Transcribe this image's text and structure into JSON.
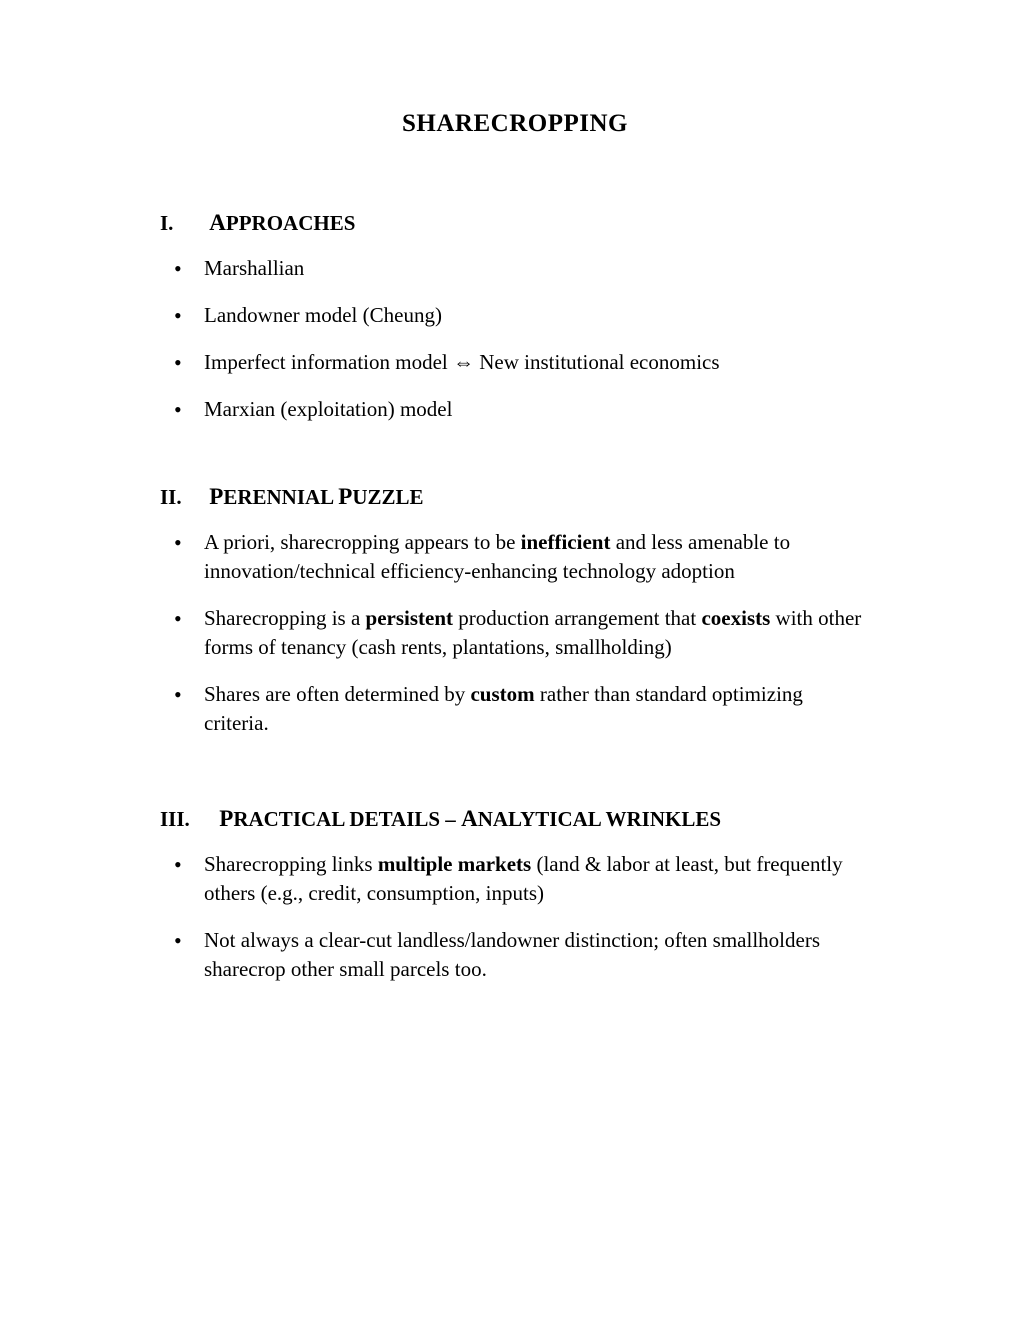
{
  "title": "SHARECROPPING",
  "sections": [
    {
      "roman": "I.",
      "heading_first": "A",
      "heading_rest": "PPROACHES",
      "bullets": [
        {
          "html": "Marshallian"
        },
        {
          "html": "Landowner model (Cheung)"
        },
        {
          "html": "Imperfect information model ⇔ New institutional economics"
        },
        {
          "html": "Marxian (exploitation) model"
        }
      ]
    },
    {
      "roman": "II.",
      "heading_first": "P",
      "heading_rest": "ERENNIAL ",
      "heading_first2": "P",
      "heading_rest2": "UZZLE",
      "bullets": [
        {
          "html": "A priori, sharecropping appears to be <span class=\"bold\">inefficient</span> and less amenable to innovation/technical efficiency-enhancing technology adoption"
        },
        {
          "html": "Sharecropping is a <span class=\"bold\">persistent</span> production arrangement that <span class=\"bold\">coexists</span> with other forms of tenancy (cash rents, plantations, smallholding)"
        },
        {
          "html": "Shares are often determined by <span class=\"bold\">custom</span> rather than standard optimizing criteria."
        }
      ]
    },
    {
      "roman": "III.",
      "heading_first": "P",
      "heading_rest": "RACTICAL DETAILS – ",
      "heading_first2": "A",
      "heading_rest2": "NALYTICAL WRINKLES",
      "bullets": [
        {
          "html": "Sharecropping links <span class=\"bold\">multiple markets</span> (land & labor at least, but frequently others (e.g., credit, consumption, inputs)"
        },
        {
          "html": "Not always a clear-cut landless/landowner distinction;  often smallholders sharecrop other small parcels too."
        }
      ]
    }
  ]
}
